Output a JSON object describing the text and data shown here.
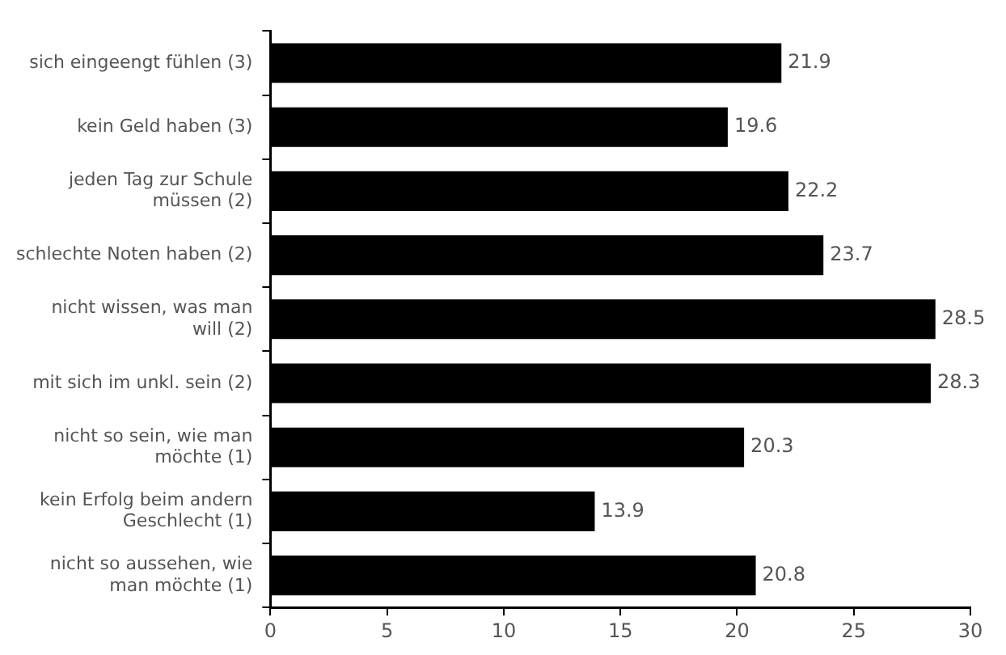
{
  "chart_data": {
    "type": "bar",
    "orientation": "horizontal",
    "categories": [
      "sich eingeengt fühlen (3)",
      "kein Geld haben (3)",
      "jeden Tag zur Schule\nmüssen (2)",
      "schlechte Noten haben (2)",
      "nicht wissen, was man\nwill (2)",
      "mit sich im unkl. sein (2)",
      "nicht so sein, wie man\nmöchte (1)",
      "kein Erfolg beim andern\nGeschlecht (1)",
      "nicht so aussehen, wie\nman möchte (1)"
    ],
    "values": [
      21.9,
      19.6,
      22.2,
      23.7,
      28.5,
      28.3,
      20.3,
      13.9,
      20.8
    ],
    "color": "#000000",
    "xlim": [
      0,
      30
    ],
    "xticks": [
      0,
      5,
      10,
      15,
      20,
      25,
      30
    ],
    "data_labels": true,
    "grid": false,
    "legend": false
  }
}
